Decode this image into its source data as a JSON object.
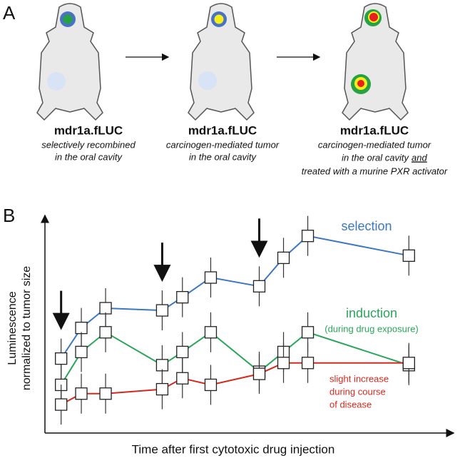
{
  "panel_a": {
    "label": "A",
    "mice": [
      {
        "name": "mdr1a.fLUC",
        "caption": [
          "selectively recombined",
          "in the oral cavity"
        ]
      },
      {
        "name": "mdr1a.fLUC",
        "caption": [
          "carcinogen-mediated tumor",
          "in the oral cavity"
        ]
      },
      {
        "name": "mdr1a.fLUC",
        "caption": [
          "carcinogen-mediated tumor",
          "in the oral cavity",
          "and",
          "treated with  a murine PXR activator"
        ]
      }
    ]
  },
  "chart_data": {
    "type": "line",
    "panel_label": "B",
    "y_label": [
      "Luminescence",
      "normalized to tumor size"
    ],
    "x_label": "Time  after first cytotoxic drug  injection",
    "x": [
      4,
      9,
      15,
      29,
      34,
      41,
      53,
      59,
      65,
      90
    ],
    "xlim": [
      0,
      100
    ],
    "ylim": [
      0,
      100
    ],
    "arrows": [
      4,
      29,
      53
    ],
    "series": [
      {
        "label_lines": [
          "selection"
        ],
        "color": "#3b78c0",
        "values": [
          34,
          48,
          57,
          56,
          62,
          71,
          67,
          80,
          90,
          81
        ]
      },
      {
        "label_lines": [
          "induction",
          "(during drug exposure)"
        ],
        "color": "#2aa55a",
        "values": [
          22,
          37,
          46,
          31,
          37,
          46,
          28,
          37,
          46,
          31
        ]
      },
      {
        "label_lines": [
          "slight increase",
          "during course",
          "of disease"
        ],
        "color": "#d42a1e",
        "values": [
          13,
          18,
          18,
          20,
          25,
          22,
          27,
          32,
          32,
          32
        ]
      }
    ]
  }
}
